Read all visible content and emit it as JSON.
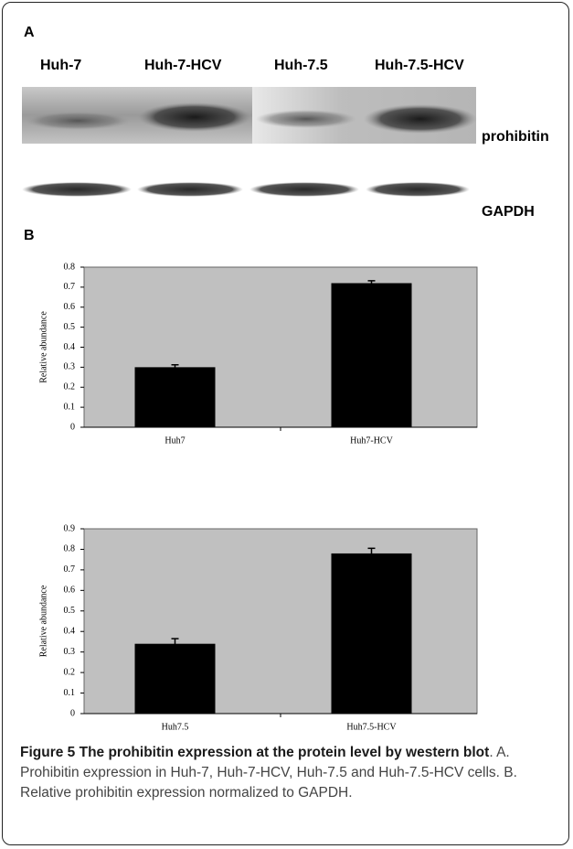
{
  "panel_a": {
    "label": "A",
    "lanes": [
      "Huh-7",
      "Huh-7-HCV",
      "Huh-7.5",
      "Huh-7.5-HCV"
    ],
    "bands": [
      "prohibitin",
      "GAPDH"
    ]
  },
  "panel_b": {
    "label": "B"
  },
  "chart_data": [
    {
      "type": "bar",
      "categories": [
        "Huh7",
        "Huh7-HCV"
      ],
      "values": [
        0.3,
        0.72
      ],
      "errors": [
        0.012,
        0.012
      ],
      "y_label": "Relative abundance",
      "ylim": [
        0,
        0.8
      ],
      "yticks": [
        0,
        0.1,
        0.2,
        0.3,
        0.4,
        0.5,
        0.6,
        0.7,
        0.8
      ],
      "color": "#000000",
      "background": "#c0c0c0"
    },
    {
      "type": "bar",
      "categories": [
        "Huh7.5",
        "Huh7.5-HCV"
      ],
      "values": [
        0.34,
        0.78
      ],
      "errors": [
        0.025,
        0.025
      ],
      "y_label": "Relative abundance",
      "ylim": [
        0,
        0.9
      ],
      "yticks": [
        0,
        0.1,
        0.2,
        0.3,
        0.4,
        0.5,
        0.6,
        0.7,
        0.8,
        0.9
      ],
      "color": "#000000",
      "background": "#c0c0c0"
    }
  ],
  "caption": {
    "title": "Figure 5 The prohibitin expression at the protein level by western blot",
    "text": ". A. Prohibitin expression in Huh-7, Huh-7-HCV, Huh-7.5 and Huh-7.5-HCV cells. B. Relative prohibitin expression normalized to GAPDH."
  }
}
